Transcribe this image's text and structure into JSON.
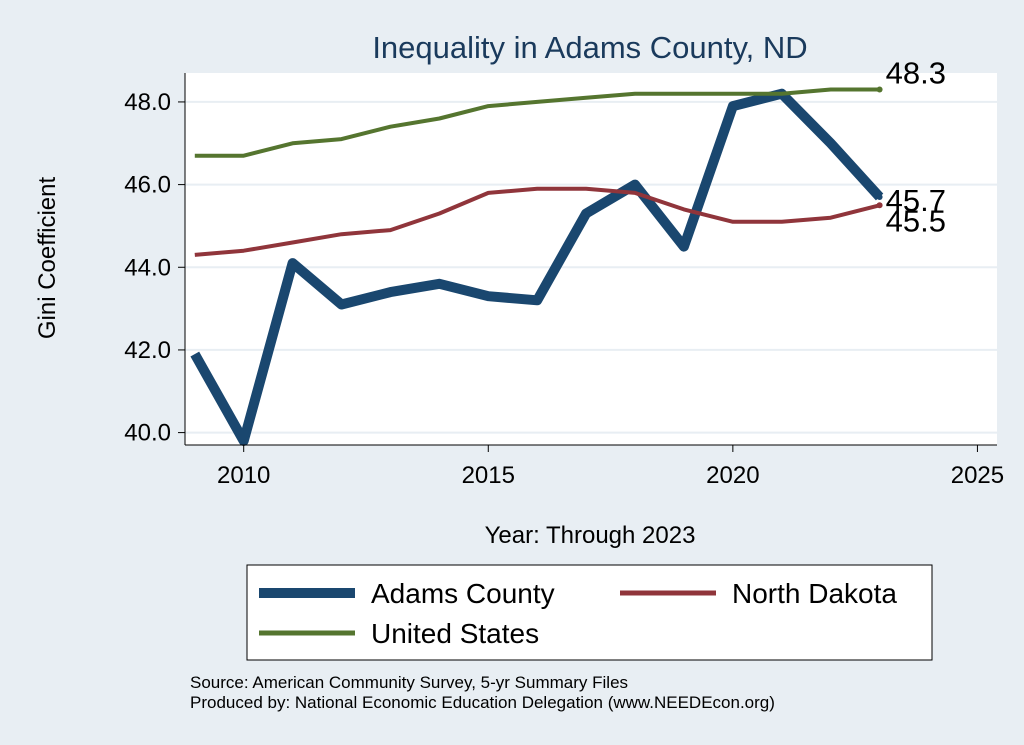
{
  "chart_data": {
    "type": "line",
    "title": "Inequality in Adams County, ND",
    "xlabel": "Year: Through 2023",
    "ylabel": "Gini Coefficient",
    "x_ticks": [
      "2010",
      "2015",
      "2020",
      "2025"
    ],
    "y_ticks": [
      "40.0",
      "42.0",
      "44.0",
      "46.0",
      "48.0"
    ],
    "xlim": [
      2008.8,
      2025.4
    ],
    "ylim": [
      39.7,
      48.7
    ],
    "grid": true,
    "legend_position": "bottom",
    "x": [
      2009,
      2010,
      2011,
      2012,
      2013,
      2014,
      2015,
      2016,
      2017,
      2018,
      2019,
      2020,
      2021,
      2022,
      2023
    ],
    "series": [
      {
        "name": "Adams County",
        "color": "#1a476f",
        "values": [
          41.9,
          39.8,
          44.1,
          43.1,
          43.4,
          43.6,
          43.3,
          43.2,
          45.3,
          46.0,
          44.5,
          47.9,
          48.2,
          47.0,
          45.7
        ]
      },
      {
        "name": "North Dakota",
        "color": "#90353b",
        "values": [
          44.3,
          44.4,
          44.6,
          44.8,
          44.9,
          45.3,
          45.8,
          45.9,
          45.9,
          45.8,
          45.4,
          45.1,
          45.1,
          45.2,
          45.5
        ]
      },
      {
        "name": "United States",
        "color": "#55752f",
        "values": [
          46.7,
          46.7,
          47.0,
          47.1,
          47.4,
          47.6,
          47.9,
          48.0,
          48.1,
          48.2,
          48.2,
          48.2,
          48.2,
          48.3,
          48.3
        ]
      }
    ],
    "end_labels": [
      "45.7",
      "45.5",
      "48.3"
    ]
  },
  "source": {
    "line1": "Source: American Community Survey, 5-yr Summary Files",
    "line2": "Produced by: National Economic Education Delegation (www.NEEDEcon.org)"
  }
}
